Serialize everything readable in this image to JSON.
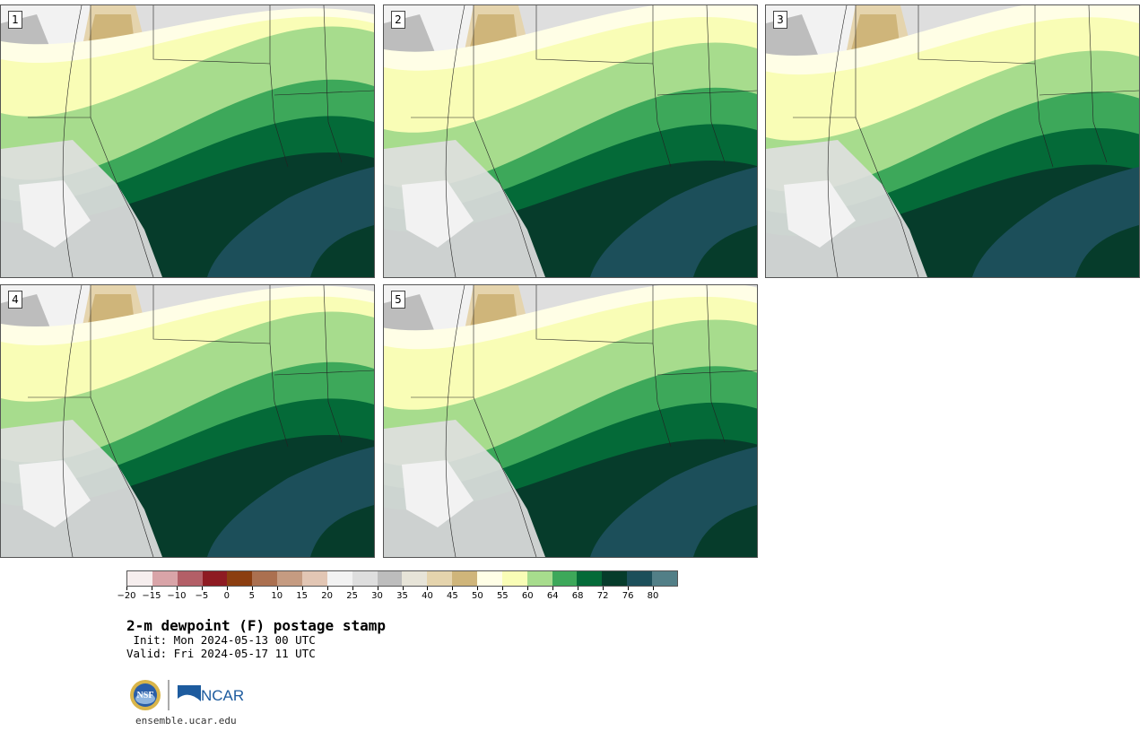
{
  "panels": [
    {
      "label": "1",
      "warm": 0.0
    },
    {
      "label": "2",
      "warm": 0.6
    },
    {
      "label": "3",
      "warm": 0.9
    },
    {
      "label": "4",
      "warm": 0.2
    },
    {
      "label": "5",
      "warm": 0.5
    }
  ],
  "colorbar": {
    "colors": [
      "#f6eeee",
      "#d9a4a8",
      "#b35f67",
      "#8e1b22",
      "#8b3e10",
      "#ab7050",
      "#c59b81",
      "#e2c6b4",
      "#f2f2f2",
      "#dedede",
      "#bdbdbd",
      "#e7e4d8",
      "#e5d4ad",
      "#cfb57a",
      "#fffee6",
      "#f9fdb6",
      "#a7dc8d",
      "#3da85a",
      "#046a38",
      "#063c2b",
      "#1c4f5a",
      "#527f87"
    ],
    "ticks": [
      "−20",
      "−15",
      "−10",
      "−5",
      "0",
      "5",
      "10",
      "15",
      "20",
      "25",
      "30",
      "35",
      "40",
      "45",
      "50",
      "55",
      "60",
      "64",
      "68",
      "72",
      "76",
      "80"
    ]
  },
  "title": "2-m dewpoint (F) postage stamp",
  "init": " Init: Mon 2024-05-13 00 UTC",
  "valid": "Valid: Fri 2024-05-17 11 UTC",
  "logos": {
    "nsf": "NSF",
    "ncar": "NCAR"
  },
  "url": "ensemble.ucar.edu"
}
